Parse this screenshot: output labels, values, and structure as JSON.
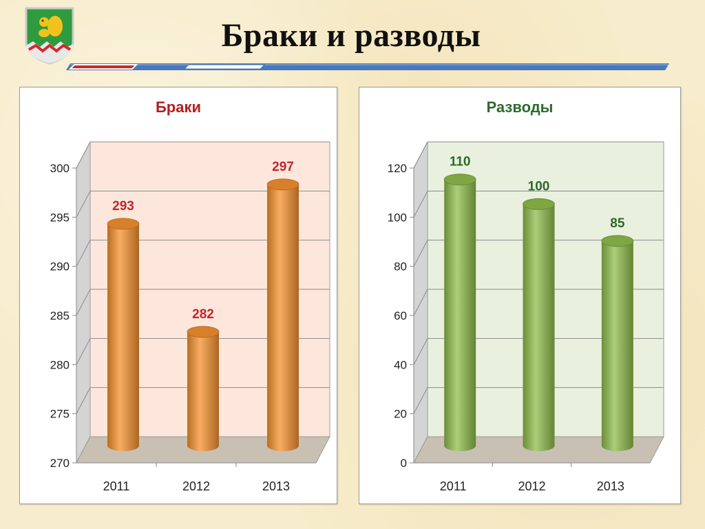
{
  "slide": {
    "title": "Браки и разводы"
  },
  "colors": {
    "marriage_bar": "#f5922f",
    "marriage_label": "#c0262c",
    "marriage_wall": "#fde7dc",
    "divorce_bar": "#8fbd4c",
    "divorce_label": "#2a6a2a",
    "divorce_wall": "#eaf0de",
    "floor": "#c9c0b4"
  },
  "chart_data": [
    {
      "type": "bar",
      "title": "Браки",
      "categories": [
        "2011",
        "2012",
        "2013"
      ],
      "values": [
        293,
        282,
        297
      ],
      "data_labels": [
        "293",
        "282",
        "297"
      ],
      "ylim": [
        270,
        300
      ],
      "yticks": [
        "270",
        "275",
        "280",
        "285",
        "290",
        "295",
        "300"
      ],
      "grid": true,
      "style": "3d-cylinder"
    },
    {
      "type": "bar",
      "title": "Разводы",
      "categories": [
        "2011",
        "2012",
        "2013"
      ],
      "values": [
        110,
        100,
        85
      ],
      "data_labels": [
        "110",
        "100",
        "85"
      ],
      "ylim": [
        0,
        120
      ],
      "yticks": [
        "0",
        "20",
        "40",
        "60",
        "80",
        "100",
        "120"
      ],
      "grid": true,
      "style": "3d-cylinder"
    }
  ]
}
